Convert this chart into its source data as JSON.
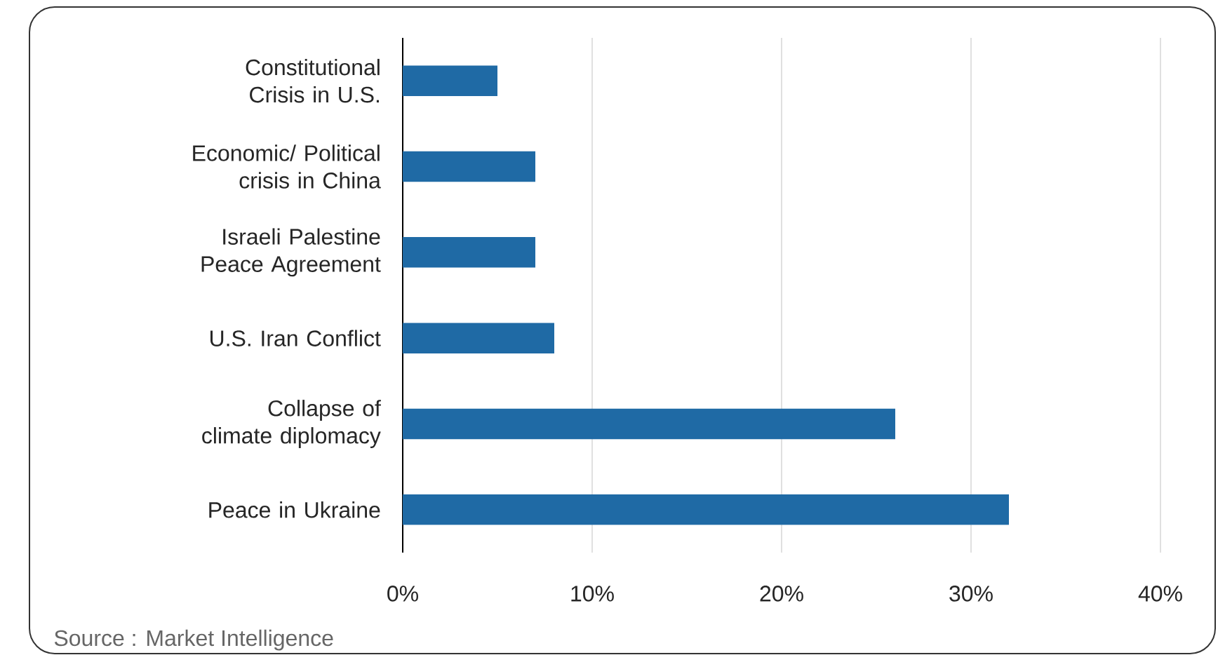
{
  "chart_data": {
    "type": "bar",
    "orientation": "horizontal",
    "categories": [
      "Constitutional Crisis in U.S.",
      "Economic/ Political crisis in China",
      "Israeli Palestine Peace Agreement",
      "U.S. Iran Conflict",
      "Collapse of climate diplomacy",
      "Peace in Ukraine"
    ],
    "values": [
      5,
      7,
      7,
      8,
      26,
      32
    ],
    "color": "#1f6aa5",
    "xlim": [
      0,
      40
    ],
    "xticks": [
      {
        "value": 0,
        "label": "0%"
      },
      {
        "value": 10,
        "label": "10%"
      },
      {
        "value": 20,
        "label": "20%"
      },
      {
        "value": 30,
        "label": "30%"
      },
      {
        "value": 40,
        "label": "40%"
      }
    ],
    "grid": "x",
    "annotations": [
      "Source : Market Intelligence"
    ]
  }
}
